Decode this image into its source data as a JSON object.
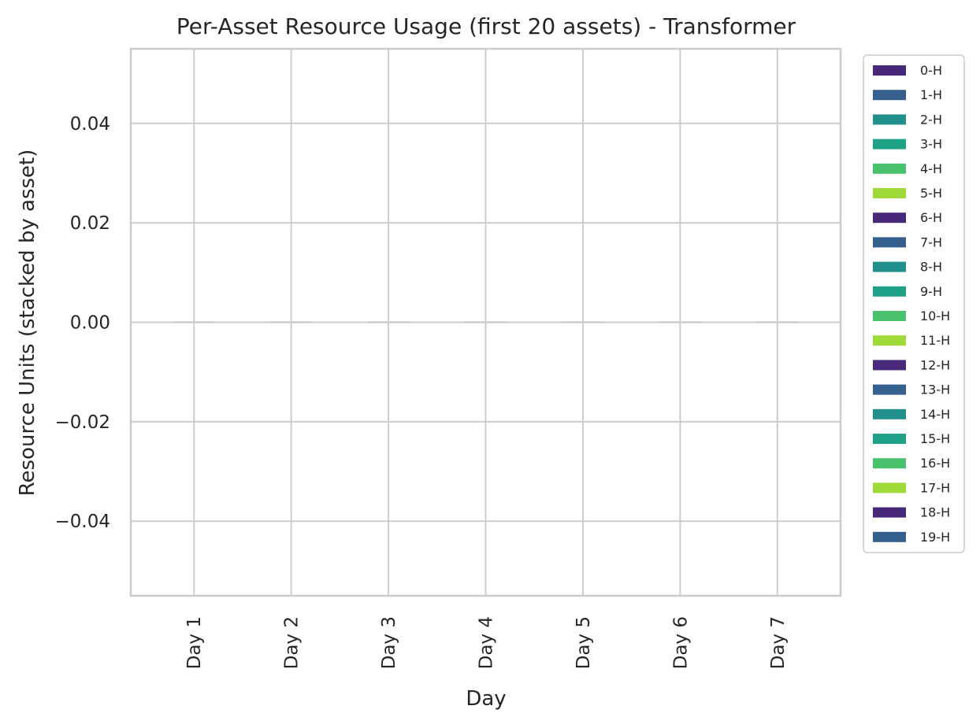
{
  "chart_data": {
    "type": "bar",
    "stacked": true,
    "title": "Per-Asset Resource Usage (first 20 assets) - Transformer",
    "xlabel": "Day",
    "ylabel": "Resource Units (stacked by asset)",
    "categories": [
      "Day 1",
      "Day 2",
      "Day 3",
      "Day 4",
      "Day 5",
      "Day 6",
      "Day 7"
    ],
    "ylim": [
      -0.055,
      0.055
    ],
    "yticks": [
      -0.04,
      -0.02,
      0.0,
      0.02,
      0.04
    ],
    "ytick_labels": [
      "−0.04",
      "−0.02",
      "0.00",
      "0.02",
      "0.04"
    ],
    "grid": true,
    "legend_position": "outside-right",
    "series": [
      {
        "name": "0-H",
        "color": "#482878",
        "values": [
          0,
          0,
          0,
          0,
          0,
          0,
          0
        ]
      },
      {
        "name": "1-H",
        "color": "#355f8d",
        "values": [
          0,
          0,
          0,
          0,
          0,
          0,
          0
        ]
      },
      {
        "name": "2-H",
        "color": "#21908d",
        "values": [
          0,
          0,
          0,
          0,
          0,
          0,
          0
        ]
      },
      {
        "name": "3-H",
        "color": "#1fa187",
        "values": [
          0,
          0,
          0,
          0,
          0,
          0,
          0
        ]
      },
      {
        "name": "4-H",
        "color": "#4ac16d",
        "values": [
          0,
          0,
          0,
          0,
          0,
          0,
          0
        ]
      },
      {
        "name": "5-H",
        "color": "#a0da39",
        "values": [
          0,
          0,
          0,
          0,
          0,
          0,
          0
        ]
      },
      {
        "name": "6-H",
        "color": "#482878",
        "values": [
          0,
          0,
          0,
          0,
          0,
          0,
          0
        ]
      },
      {
        "name": "7-H",
        "color": "#355f8d",
        "values": [
          0,
          0,
          0,
          0,
          0,
          0,
          0
        ]
      },
      {
        "name": "8-H",
        "color": "#21908d",
        "values": [
          0,
          0,
          0,
          0,
          0,
          0,
          0
        ]
      },
      {
        "name": "9-H",
        "color": "#1fa187",
        "values": [
          0,
          0,
          0,
          0,
          0,
          0,
          0
        ]
      },
      {
        "name": "10-H",
        "color": "#4ac16d",
        "values": [
          0,
          0,
          0,
          0,
          0,
          0,
          0
        ]
      },
      {
        "name": "11-H",
        "color": "#a0da39",
        "values": [
          0,
          0,
          0,
          0,
          0,
          0,
          0
        ]
      },
      {
        "name": "12-H",
        "color": "#482878",
        "values": [
          0,
          0,
          0,
          0,
          0,
          0,
          0
        ]
      },
      {
        "name": "13-H",
        "color": "#355f8d",
        "values": [
          0,
          0,
          0,
          0,
          0,
          0,
          0
        ]
      },
      {
        "name": "14-H",
        "color": "#21908d",
        "values": [
          0,
          0,
          0,
          0,
          0,
          0,
          0
        ]
      },
      {
        "name": "15-H",
        "color": "#1fa187",
        "values": [
          0,
          0,
          0,
          0,
          0,
          0,
          0
        ]
      },
      {
        "name": "16-H",
        "color": "#4ac16d",
        "values": [
          0,
          0,
          0,
          0,
          0,
          0,
          0
        ]
      },
      {
        "name": "17-H",
        "color": "#a0da39",
        "values": [
          0,
          0,
          0,
          0,
          0,
          0,
          0
        ]
      },
      {
        "name": "18-H",
        "color": "#482878",
        "values": [
          0,
          0,
          0,
          0,
          0,
          0,
          0
        ]
      },
      {
        "name": "19-H",
        "color": "#355f8d",
        "values": [
          0,
          0,
          0,
          0,
          0,
          0,
          0
        ]
      }
    ],
    "colors": {
      "grid": "#cccccc",
      "spine": "#cccccc",
      "text": "#262626",
      "background": "#ffffff"
    }
  }
}
